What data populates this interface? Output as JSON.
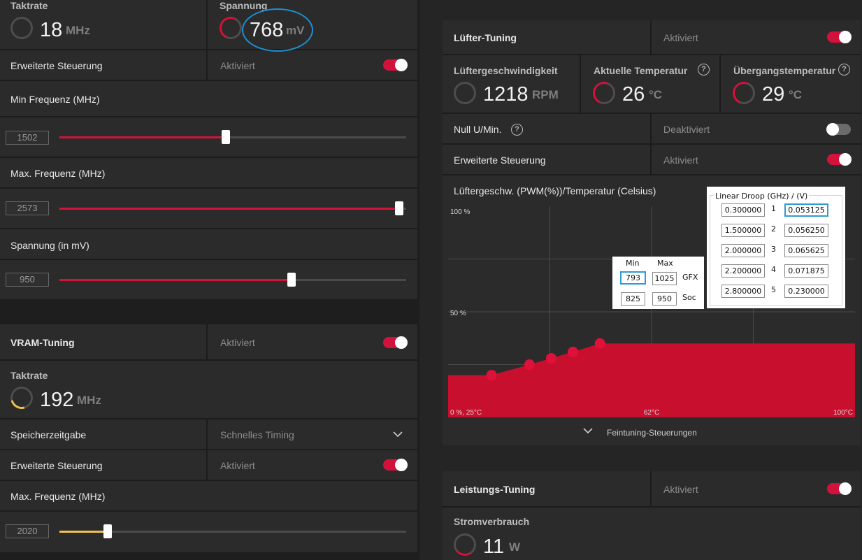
{
  "gpu": {
    "clock": {
      "label": "Taktrate",
      "value": "18",
      "unit": "MHz"
    },
    "voltage": {
      "label": "Spannung",
      "value": "768",
      "unit": "mV"
    },
    "advanced": {
      "label": "Erweiterte Steuerung",
      "state": "Aktiviert"
    },
    "min_freq": {
      "label": "Min Frequenz (MHz)",
      "value": "1502",
      "fraction": 0.48
    },
    "max_freq": {
      "label": "Max. Frequenz (MHz)",
      "value": "2573",
      "fraction": 0.98
    },
    "voltage_ctl": {
      "label": "Spannung (in mV)",
      "value": "950",
      "fraction": 0.67
    }
  },
  "vram": {
    "title": "VRAM-Tuning",
    "state": "Aktiviert",
    "clock": {
      "label": "Taktrate",
      "value": "192",
      "unit": "MHz"
    },
    "timing": {
      "label": "Speicherzeitgabe",
      "value": "Schnelles Timing"
    },
    "advanced": {
      "label": "Erweiterte Steuerung",
      "state": "Aktiviert"
    },
    "max_freq": {
      "label": "Max. Frequenz (MHz)",
      "value": "2020",
      "fraction": 0.14
    }
  },
  "fan": {
    "title": "Lüfter-Tuning",
    "state": "Aktiviert",
    "speed": {
      "label": "Lüftergeschwindigkeit",
      "value": "1218",
      "unit": "RPM"
    },
    "temp": {
      "label": "Aktuelle Temperatur",
      "value": "26",
      "unit": "°C"
    },
    "junction": {
      "label": "Übergangstemperatur",
      "value": "29",
      "unit": "°C"
    },
    "zero_rpm": {
      "label": "Null U/Min.",
      "state": "Deaktiviert"
    },
    "advanced": {
      "label": "Erweiterte Steuerung",
      "state": "Aktiviert"
    },
    "curve_title": "Lüftergeschw. (PWM(%))/Temperatur (Celsius)",
    "fine_tune": "Feintuning-Steuerungen",
    "help_glyph": "?"
  },
  "chart_data": {
    "type": "area",
    "x_labels": {
      "left": "0 %, 25°C",
      "mid": "62°C",
      "right": "100°C"
    },
    "y_labels": {
      "top": "100 %",
      "mid": "50 %"
    },
    "xlim": [
      25,
      100
    ],
    "ylim": [
      0,
      100
    ],
    "points": [
      {
        "x": 33,
        "y": 20
      },
      {
        "x": 40,
        "y": 25
      },
      {
        "x": 44,
        "y": 28
      },
      {
        "x": 48,
        "y": 31
      },
      {
        "x": 53,
        "y": 35
      },
      {
        "x": 100,
        "y": 35
      }
    ],
    "fill_color": "#c8102e",
    "grid": true
  },
  "power": {
    "title": "Leistungs-Tuning",
    "state": "Aktiviert",
    "consumption": {
      "label": "Stromverbrauch",
      "value": "11",
      "unit": "W"
    }
  },
  "droop": {
    "title": "Linear Droop (GHz) / (V)",
    "rows": [
      {
        "ghz": "0.300000",
        "idx": "1",
        "v": "0.053125"
      },
      {
        "ghz": "1.500000",
        "idx": "2",
        "v": "0.056250"
      },
      {
        "ghz": "2.000000",
        "idx": "3",
        "v": "0.065625"
      },
      {
        "ghz": "2.200000",
        "idx": "4",
        "v": "0.071875"
      },
      {
        "ghz": "2.800000",
        "idx": "5",
        "v": "0.230000"
      }
    ]
  },
  "minmax": {
    "min_label": "Min",
    "max_label": "Max",
    "gfx": {
      "label": "GFX",
      "min": "793",
      "max": "1025"
    },
    "soc": {
      "label": "Soc",
      "min": "825",
      "max": "950"
    }
  },
  "colors": {
    "accent": "#d3123b",
    "vram_slider": "#f2c14e",
    "annotation": "#1e8fd0"
  }
}
